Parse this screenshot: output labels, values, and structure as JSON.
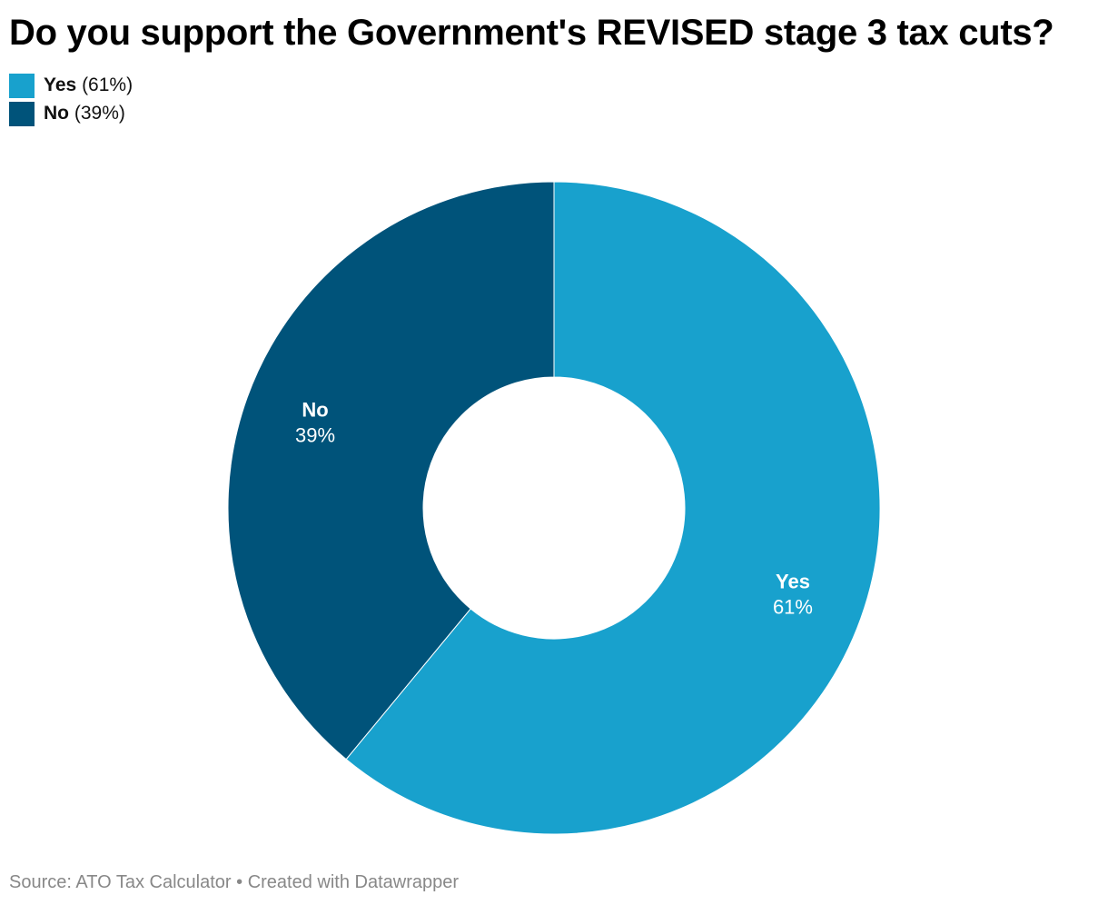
{
  "title": "Do you support the Government's REVISED stage 3 tax cuts?",
  "legend": [
    {
      "name": "Yes",
      "value_text": "(61%)",
      "color": "#18a1cd"
    },
    {
      "name": "No",
      "value_text": "(39%)",
      "color": "#00537a"
    }
  ],
  "chart_data": {
    "type": "pie",
    "donut": true,
    "title": "Do you support the Government's REVISED stage 3 tax cuts?",
    "categories": [
      "Yes",
      "No"
    ],
    "values": [
      61,
      39
    ],
    "labels": [
      "61%",
      "39%"
    ],
    "colors": [
      "#18a1cd",
      "#00537a"
    ],
    "legend_position": "top-left"
  },
  "footer": {
    "source": "Source: ATO Tax Calculator",
    "separator": "•",
    "credit": "Created with Datawrapper"
  }
}
